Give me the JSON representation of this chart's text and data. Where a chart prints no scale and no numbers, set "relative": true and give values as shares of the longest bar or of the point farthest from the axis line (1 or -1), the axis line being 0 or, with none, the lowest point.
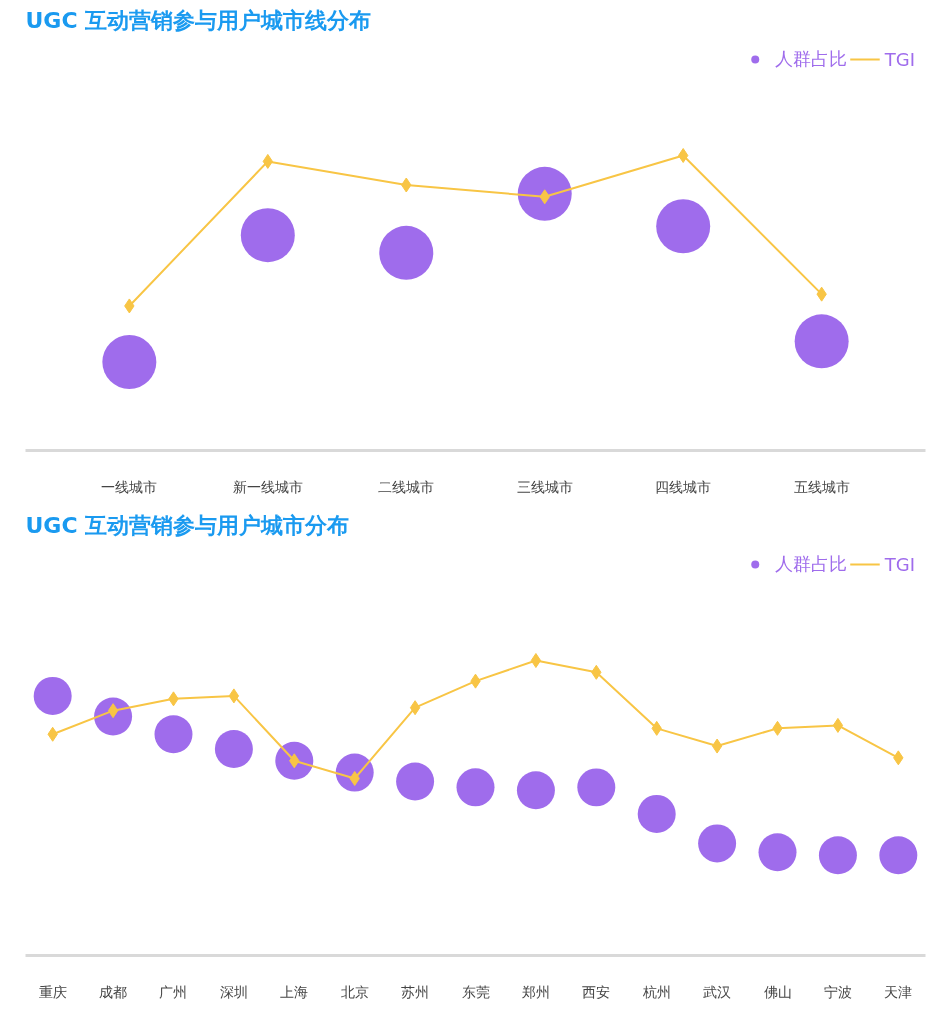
{
  "chart_data": [
    {
      "type": "lollipop",
      "title": "UGC 互动营销参与用户城市线分布",
      "relative": true,
      "legend": "top right",
      "categories": [
        "一线城市",
        "新一线城市",
        "二线城市",
        "三线城市",
        "四线城市",
        "五线城市"
      ],
      "series": [
        {
          "name": "人群占比",
          "color": "#9f6cec",
          "values": [
            0.3,
            0.73,
            0.67,
            0.87,
            0.76,
            0.37
          ]
        },
        {
          "name": "TGI",
          "type": "line",
          "marker": "diamond",
          "color": "#f8c545",
          "values": [
            0.49,
            0.98,
            0.9,
            0.86,
            1.0,
            0.53
          ]
        }
      ]
    },
    {
      "type": "lollipop",
      "title": "UGC 互动营销参与用户城市分布",
      "relative": true,
      "legend": "top right",
      "categories": [
        "重庆",
        "成都",
        "广州",
        "深圳",
        "上海",
        "北京",
        "苏州",
        "东莞",
        "郑州",
        "西安",
        "杭州",
        "武汉",
        "佛山",
        "宁波",
        "天津"
      ],
      "series": [
        {
          "name": "人群占比",
          "color": "#9f6cec",
          "values": [
            0.88,
            0.81,
            0.75,
            0.7,
            0.66,
            0.62,
            0.59,
            0.57,
            0.56,
            0.57,
            0.48,
            0.38,
            0.35,
            0.34,
            0.34
          ]
        },
        {
          "name": "TGI",
          "type": "line",
          "marker": "diamond",
          "color": "#f8c545",
          "values": [
            0.75,
            0.83,
            0.87,
            0.88,
            0.66,
            0.6,
            0.84,
            0.93,
            1.0,
            0.96,
            0.77,
            0.71,
            0.77,
            0.78,
            0.67
          ]
        }
      ]
    }
  ]
}
